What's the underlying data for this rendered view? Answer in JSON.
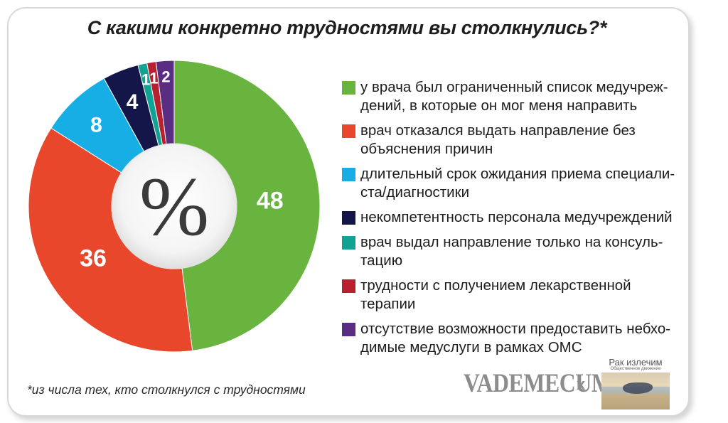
{
  "title": "С какими конкретно трудностями вы столкнулись?*",
  "center_symbol": "%",
  "note": "*из числа тех, кто столкнулся с трудностями",
  "branding": {
    "vademecum": "VADEMECUM",
    "times": "x",
    "partner_name": "Рак излечим",
    "partner_sub": "Общественное движение"
  },
  "chart_data": {
    "type": "pie",
    "title": "С какими конкретно трудностями вы столкнулись?*",
    "unit": "%",
    "slices": [
      {
        "label": "у врача был ограниченный список медучреж-дений, в которые он мог меня направить",
        "value": 48,
        "value_label": "48",
        "color": "#68b43e"
      },
      {
        "label": "врач отказался выдать направление без объяснения причин",
        "value": 36,
        "value_label": "36",
        "color": "#e8472b"
      },
      {
        "label": "длительный срок ожидания приема специали-ста/диагностики",
        "value": 8,
        "value_label": "8",
        "color": "#16aee4"
      },
      {
        "label": "некомпетентность персонала медучреждений",
        "value": 4,
        "value_label": "4",
        "color": "#141548"
      },
      {
        "label": "врач выдал направление только на консуль-тацию",
        "value": 1,
        "value_label": "1",
        "color": "#10a393"
      },
      {
        "label": "трудности с получением лекарственной терапии",
        "value": 1,
        "value_label": "1",
        "color": "#b8202f"
      },
      {
        "label": "отсутствие возможности предоставить небхо-димые медуслуги в рамках ОМС",
        "value": 2,
        "value_label": "2",
        "color": "#5b2d82"
      }
    ],
    "legend": [
      {
        "lines": [
          "у врача был ограниченный список медучреж-",
          "дений, в которые он мог меня направить"
        ],
        "color": "#68b43e"
      },
      {
        "lines": [
          "врач отказался выдать направление без",
          "объяснения причин"
        ],
        "color": "#e8472b"
      },
      {
        "lines": [
          "длительный срок ожидания приема специали-",
          "ста/диагностики"
        ],
        "color": "#16aee4"
      },
      {
        "lines": [
          "некомпетентность персонала медучреждений"
        ],
        "color": "#141548"
      },
      {
        "lines": [
          "врач выдал направление только на консуль-",
          "тацию"
        ],
        "color": "#10a393"
      },
      {
        "lines": [
          "трудности с получением лекарственной",
          "терапии"
        ],
        "color": "#b8202f"
      },
      {
        "lines": [
          "отсутствие возможности предоставить небхо-",
          "димые медуслуги в рамках ОМС"
        ],
        "color": "#5b2d82"
      }
    ]
  }
}
